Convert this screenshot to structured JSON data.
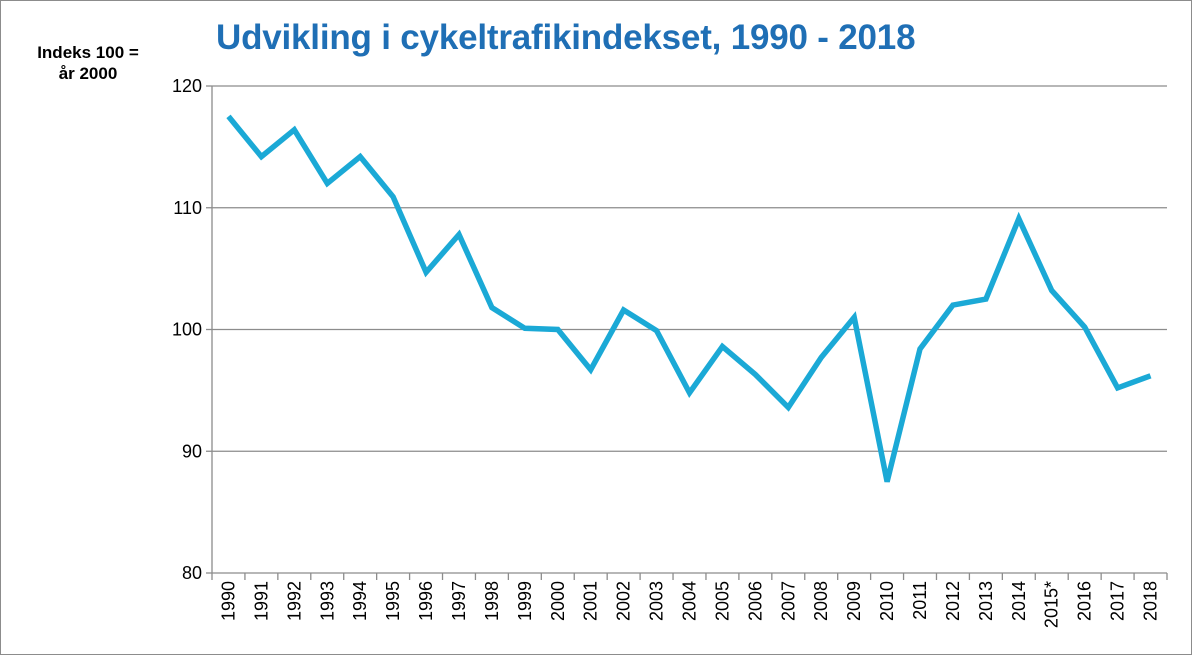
{
  "chart_data": {
    "type": "line",
    "title": "Udvikling i cykeltrafikindekset, 1990 - 2018",
    "ylabel_lines": [
      "Indeks 100 =",
      "år 2000"
    ],
    "xlabel": "",
    "ylim": [
      80,
      120
    ],
    "yticks": [
      80,
      90,
      100,
      110,
      120
    ],
    "grid": true,
    "legend": "none",
    "line_color": "#1ba9d6",
    "categories": [
      "1990",
      "1991",
      "1992",
      "1993",
      "1994",
      "1995",
      "1996",
      "1997",
      "1998",
      "1999",
      "2000",
      "2001",
      "2002",
      "2003",
      "2004",
      "2005",
      "2006",
      "2007",
      "2008",
      "2009",
      "2010",
      "2011",
      "2012",
      "2013",
      "2014",
      "2015*",
      "2016",
      "2017",
      "2018"
    ],
    "series": [
      {
        "values": [
          117.5,
          114.2,
          116.4,
          112.0,
          114.2,
          110.9,
          104.7,
          107.8,
          101.8,
          100.1,
          100.0,
          96.7,
          101.6,
          99.9,
          94.8,
          98.6,
          96.3,
          93.6,
          97.7,
          101.0,
          87.5,
          98.4,
          102.0,
          102.5,
          109.1,
          103.2,
          100.2,
          95.2,
          96.2
        ]
      }
    ]
  }
}
